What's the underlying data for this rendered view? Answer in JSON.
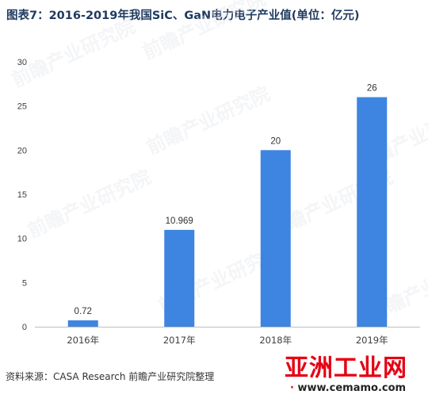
{
  "title": "图表7：2016-2019年我国SiC、GaN电力电子产业值(单位：亿元)",
  "source": "资料来源：CASA Research 前瞻产业研究院整理",
  "watermark": {
    "logo_text": "亚洲工业网",
    "url_text": "www.cemamo.com",
    "background_text": "前瞻产业研究院"
  },
  "colors": {
    "bar": "#3d85e0",
    "axis": "#bfbfbf",
    "tick_text": "#404040",
    "title": "#1f3a5f",
    "watermark_red": "#e60012"
  },
  "chart_data": {
    "type": "bar",
    "title": "图表7：2016-2019年我国SiC、GaN电力电子产业值(单位：亿元)",
    "xlabel": "",
    "ylabel": "",
    "categories": [
      "2016年",
      "2017年",
      "2018年",
      "2019年"
    ],
    "values": [
      0.72,
      10.969,
      20,
      26
    ],
    "value_labels": [
      "0.72",
      "10.969",
      "20",
      "26"
    ],
    "ylim": [
      0,
      30
    ],
    "yticks": [
      "0",
      "5",
      "10",
      "15",
      "20",
      "25",
      "30"
    ],
    "grid": false,
    "legend": "none"
  }
}
